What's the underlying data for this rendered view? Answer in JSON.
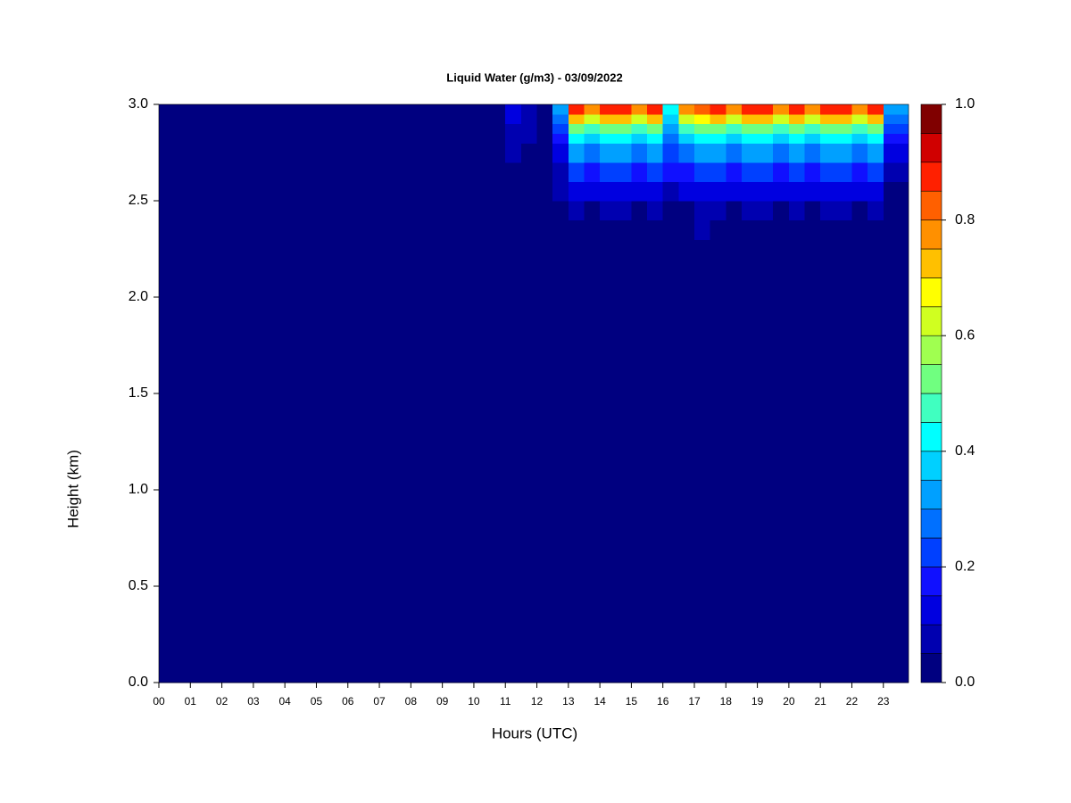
{
  "chart_data": {
    "type": "contour",
    "title": "Liquid Water (g/m3) - 03/09/2022",
    "xlabel": "Hours (UTC)",
    "ylabel": "Height (km)",
    "xlim": [
      0,
      23.8
    ],
    "ylim": [
      0,
      3
    ],
    "xticks": [
      {
        "value": 0,
        "label": "00"
      },
      {
        "value": 1,
        "label": "01"
      },
      {
        "value": 2,
        "label": "02"
      },
      {
        "value": 3,
        "label": "03"
      },
      {
        "value": 4,
        "label": "04"
      },
      {
        "value": 5,
        "label": "05"
      },
      {
        "value": 6,
        "label": "06"
      },
      {
        "value": 7,
        "label": "07"
      },
      {
        "value": 8,
        "label": "08"
      },
      {
        "value": 9,
        "label": "09"
      },
      {
        "value": 10,
        "label": "10"
      },
      {
        "value": 11,
        "label": "11"
      },
      {
        "value": 12,
        "label": "12"
      },
      {
        "value": 13,
        "label": "13"
      },
      {
        "value": 14,
        "label": "14"
      },
      {
        "value": 15,
        "label": "15"
      },
      {
        "value": 16,
        "label": "16"
      },
      {
        "value": 17,
        "label": "17"
      },
      {
        "value": 18,
        "label": "18"
      },
      {
        "value": 19,
        "label": "19"
      },
      {
        "value": 20,
        "label": "20"
      },
      {
        "value": 21,
        "label": "21"
      },
      {
        "value": 22,
        "label": "22"
      },
      {
        "value": 23,
        "label": "23"
      }
    ],
    "yticks": [
      {
        "value": 0,
        "label": "0.0"
      },
      0.5,
      {
        "value": 1,
        "label": "1.0"
      },
      1.5,
      {
        "value": 2,
        "label": "2.0"
      },
      2.5,
      {
        "value": 3,
        "label": "3.0"
      }
    ],
    "x_edges": [
      0,
      0.5,
      1,
      1.5,
      2,
      2.5,
      3,
      3.5,
      4,
      4.5,
      5,
      5.5,
      6,
      6.5,
      7,
      7.5,
      8,
      8.5,
      9,
      9.5,
      10,
      10.5,
      11,
      11.5,
      12,
      12.5,
      13,
      13.5,
      14,
      14.5,
      15,
      15.5,
      16,
      16.5,
      17,
      17.5,
      18,
      18.5,
      19,
      19.5,
      20,
      20.5,
      21,
      21.5,
      22,
      22.5,
      23,
      23.5,
      23.8
    ],
    "y_edges": [
      0,
      2.3,
      2.4,
      2.5,
      2.6,
      2.7,
      2.8,
      2.85,
      2.9,
      2.95,
      3.0
    ],
    "z": [
      [
        0,
        0,
        0,
        0,
        0,
        0,
        0,
        0,
        0,
        0,
        0,
        0,
        0,
        0,
        0,
        0,
        0,
        0,
        0,
        0,
        0,
        0,
        0,
        0,
        0,
        0,
        0,
        0,
        0,
        0,
        0,
        0,
        0,
        0,
        0,
        0,
        0,
        0,
        0,
        0,
        0,
        0,
        0,
        0,
        0,
        0,
        0,
        0
      ],
      [
        0,
        0,
        0,
        0,
        0,
        0,
        0,
        0,
        0,
        0,
        0,
        0,
        0,
        0,
        0,
        0,
        0,
        0,
        0,
        0,
        0,
        0,
        0,
        0,
        0,
        0,
        0.02,
        0,
        0.02,
        0.02,
        0,
        0.02,
        0,
        0,
        0.05,
        0.02,
        0,
        0.02,
        0.02,
        0,
        0.02,
        0,
        0.02,
        0.02,
        0,
        0.02,
        0,
        0
      ],
      [
        0,
        0,
        0,
        0,
        0,
        0,
        0,
        0,
        0,
        0,
        0,
        0,
        0,
        0,
        0,
        0,
        0,
        0,
        0,
        0,
        0,
        0,
        0,
        0,
        0,
        0.02,
        0.05,
        0.04,
        0.05,
        0.05,
        0.04,
        0.05,
        0.03,
        0.04,
        0.08,
        0.05,
        0.04,
        0.05,
        0.05,
        0.04,
        0.05,
        0.04,
        0.05,
        0.05,
        0.04,
        0.05,
        0,
        0
      ],
      [
        0,
        0,
        0,
        0,
        0,
        0,
        0,
        0,
        0,
        0,
        0,
        0,
        0,
        0,
        0,
        0,
        0,
        0,
        0,
        0,
        0,
        0,
        0.02,
        0.01,
        0,
        0.05,
        0.12,
        0.1,
        0.12,
        0.12,
        0.1,
        0.12,
        0.08,
        0.1,
        0.14,
        0.12,
        0.1,
        0.12,
        0.12,
        0.1,
        0.12,
        0.1,
        0.12,
        0.12,
        0.1,
        0.12,
        0.02,
        0.02
      ],
      [
        0,
        0,
        0,
        0,
        0,
        0,
        0,
        0,
        0,
        0,
        0,
        0,
        0,
        0,
        0,
        0,
        0,
        0,
        0,
        0,
        0,
        0,
        0.04,
        0.03,
        0,
        0.08,
        0.2,
        0.18,
        0.2,
        0.2,
        0.18,
        0.2,
        0.15,
        0.18,
        0.22,
        0.2,
        0.18,
        0.2,
        0.2,
        0.18,
        0.2,
        0.18,
        0.2,
        0.2,
        0.18,
        0.2,
        0.05,
        0.05
      ],
      [
        0,
        0,
        0,
        0,
        0,
        0,
        0,
        0,
        0,
        0,
        0,
        0,
        0,
        0,
        0,
        0,
        0,
        0,
        0,
        0,
        0,
        0,
        0.05,
        0.04,
        0,
        0.12,
        0.3,
        0.25,
        0.3,
        0.3,
        0.25,
        0.3,
        0.2,
        0.25,
        0.3,
        0.3,
        0.25,
        0.3,
        0.3,
        0.25,
        0.3,
        0.25,
        0.3,
        0.3,
        0.25,
        0.3,
        0.1,
        0.1
      ],
      [
        0,
        0,
        0,
        0,
        0,
        0,
        0,
        0,
        0,
        0,
        0,
        0,
        0,
        0,
        0,
        0,
        0,
        0,
        0,
        0,
        0,
        0,
        0.06,
        0.05,
        0,
        0.15,
        0.4,
        0.35,
        0.4,
        0.4,
        0.35,
        0.4,
        0.25,
        0.35,
        0.4,
        0.4,
        0.35,
        0.4,
        0.4,
        0.35,
        0.4,
        0.35,
        0.4,
        0.4,
        0.35,
        0.4,
        0.15,
        0.15
      ],
      [
        0,
        0,
        0,
        0,
        0,
        0,
        0,
        0,
        0,
        0,
        0,
        0,
        0,
        0,
        0,
        0,
        0,
        0,
        0,
        0,
        0,
        0,
        0.08,
        0.06,
        0,
        0.2,
        0.5,
        0.45,
        0.5,
        0.5,
        0.45,
        0.5,
        0.3,
        0.45,
        0.5,
        0.5,
        0.45,
        0.5,
        0.5,
        0.45,
        0.5,
        0.45,
        0.5,
        0.5,
        0.45,
        0.5,
        0.2,
        0.2
      ],
      [
        0,
        0,
        0,
        0,
        0,
        0,
        0,
        0,
        0,
        0,
        0,
        0,
        0,
        0,
        0,
        0,
        0,
        0,
        0,
        0,
        0,
        0,
        0.1,
        0.07,
        0,
        0.25,
        0.7,
        0.6,
        0.7,
        0.7,
        0.6,
        0.7,
        0.35,
        0.6,
        0.68,
        0.7,
        0.6,
        0.7,
        0.7,
        0.6,
        0.7,
        0.6,
        0.7,
        0.7,
        0.6,
        0.7,
        0.25,
        0.25
      ],
      [
        0,
        0,
        0,
        0,
        0,
        0,
        0,
        0,
        0,
        0,
        0,
        0,
        0,
        0,
        0,
        0,
        0,
        0,
        0,
        0,
        0,
        0,
        0.1,
        0.08,
        0,
        0.3,
        0.85,
        0.75,
        0.85,
        0.85,
        0.75,
        0.85,
        0.4,
        0.75,
        0.82,
        0.85,
        0.75,
        0.85,
        0.85,
        0.75,
        0.85,
        0.75,
        0.85,
        0.85,
        0.75,
        0.85,
        0.3,
        0.3
      ]
    ],
    "levels": [
      0,
      0.05,
      0.1,
      0.15,
      0.2,
      0.25,
      0.3,
      0.35,
      0.4,
      0.45,
      0.5,
      0.55,
      0.6,
      0.65,
      0.7,
      0.75,
      0.8,
      0.85,
      0.9,
      0.95,
      1.0
    ],
    "colors": [
      "#000080",
      "#0000b0",
      "#0000e0",
      "#1010ff",
      "#0040ff",
      "#0070ff",
      "#00a0ff",
      "#00d0ff",
      "#00ffff",
      "#40ffc0",
      "#70ff80",
      "#a0ff50",
      "#d0ff20",
      "#ffff00",
      "#ffc000",
      "#ff9000",
      "#ff6000",
      "#ff2000",
      "#d00000",
      "#800000"
    ],
    "colorbar_ticks": [
      {
        "value": 0,
        "label": "0.0"
      },
      0.2,
      0.4,
      0.6,
      0.8,
      {
        "value": 1,
        "label": "1.0"
      }
    ]
  }
}
